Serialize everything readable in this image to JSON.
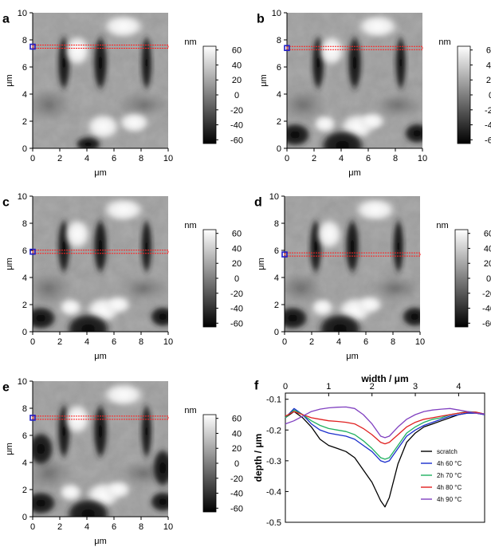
{
  "panels": [
    {
      "letter": "a",
      "scan_line_y_um": 7.5
    },
    {
      "letter": "b",
      "scan_line_y_um": 7.4
    },
    {
      "letter": "c",
      "scan_line_y_um": 5.9
    },
    {
      "letter": "d",
      "scan_line_y_um": 5.7
    },
    {
      "letter": "e",
      "scan_line_y_um": 7.3
    }
  ],
  "afm_axes": {
    "xlabel": "μm",
    "ylabel": "μm",
    "x_ticks": [
      "0",
      "2",
      "4",
      "6",
      "8",
      "10"
    ],
    "y_ticks": [
      "0",
      "2",
      "4",
      "6",
      "8",
      "10"
    ],
    "xlim": [
      0,
      10
    ],
    "ylim": [
      0,
      10
    ]
  },
  "colorbar": {
    "unit": "nm",
    "ticks": [
      "60",
      "40",
      "20",
      "0",
      "-20",
      "-40",
      "-60"
    ],
    "range": [
      -65,
      65
    ],
    "colors": {
      "high": "#ffffff",
      "low": "#000000"
    }
  },
  "scan_line_color": "#ff2020",
  "marker_color": "#2020c8",
  "chart_data": {
    "type": "line",
    "letter": "f",
    "xlabel": "width / μm",
    "ylabel": "depth / μm",
    "x_ticks": [
      "0",
      "1",
      "2",
      "3",
      "4"
    ],
    "y_ticks": [
      "-0.1",
      "-0.2",
      "-0.3",
      "-0.4",
      "-0.5"
    ],
    "xlim": [
      0,
      4.6
    ],
    "ylim": [
      -0.5,
      -0.08
    ],
    "legend_position": "bottom-right",
    "series": [
      {
        "name": "scratch",
        "color": "#000000",
        "x": [
          0,
          0.2,
          0.4,
          0.6,
          0.8,
          1.0,
          1.2,
          1.4,
          1.6,
          1.8,
          2.0,
          2.2,
          2.3,
          2.4,
          2.6,
          2.8,
          3.0,
          3.2,
          3.4,
          3.6,
          3.8,
          4.0,
          4.2,
          4.4,
          4.6
        ],
        "y": [
          -0.16,
          -0.14,
          -0.16,
          -0.19,
          -0.23,
          -0.25,
          -0.26,
          -0.27,
          -0.29,
          -0.33,
          -0.37,
          -0.43,
          -0.45,
          -0.42,
          -0.31,
          -0.24,
          -0.21,
          -0.19,
          -0.18,
          -0.17,
          -0.16,
          -0.15,
          -0.145,
          -0.145,
          -0.15
        ]
      },
      {
        "name": "4h 60 °C",
        "color": "#1a2ecc",
        "x": [
          0,
          0.2,
          0.4,
          0.6,
          0.8,
          1.0,
          1.2,
          1.4,
          1.6,
          1.8,
          2.0,
          2.2,
          2.3,
          2.4,
          2.6,
          2.8,
          3.0,
          3.2,
          3.4,
          3.6,
          3.8,
          4.0,
          4.2,
          4.4,
          4.6
        ],
        "y": [
          -0.16,
          -0.13,
          -0.15,
          -0.18,
          -0.2,
          -0.21,
          -0.215,
          -0.22,
          -0.23,
          -0.25,
          -0.27,
          -0.3,
          -0.305,
          -0.3,
          -0.26,
          -0.22,
          -0.2,
          -0.185,
          -0.175,
          -0.165,
          -0.155,
          -0.15,
          -0.145,
          -0.145,
          -0.15
        ]
      },
      {
        "name": "2h 70 °C",
        "color": "#20b060",
        "x": [
          0,
          0.2,
          0.4,
          0.6,
          0.8,
          1.0,
          1.2,
          1.4,
          1.6,
          1.8,
          2.0,
          2.2,
          2.3,
          2.4,
          2.6,
          2.8,
          3.0,
          3.2,
          3.4,
          3.6,
          3.8,
          4.0,
          4.2,
          4.4,
          4.6
        ],
        "y": [
          -0.16,
          -0.135,
          -0.15,
          -0.17,
          -0.185,
          -0.195,
          -0.2,
          -0.205,
          -0.215,
          -0.235,
          -0.26,
          -0.29,
          -0.295,
          -0.29,
          -0.25,
          -0.21,
          -0.19,
          -0.175,
          -0.165,
          -0.16,
          -0.15,
          -0.145,
          -0.14,
          -0.142,
          -0.148
        ]
      },
      {
        "name": "4h 80 °C",
        "color": "#e02020",
        "x": [
          0,
          0.2,
          0.4,
          0.6,
          0.8,
          1.0,
          1.2,
          1.4,
          1.6,
          1.8,
          2.0,
          2.2,
          2.3,
          2.4,
          2.6,
          2.8,
          3.0,
          3.2,
          3.4,
          3.6,
          3.8,
          4.0,
          4.2,
          4.4,
          4.6
        ],
        "y": [
          -0.155,
          -0.14,
          -0.15,
          -0.16,
          -0.165,
          -0.17,
          -0.172,
          -0.175,
          -0.18,
          -0.195,
          -0.215,
          -0.24,
          -0.245,
          -0.24,
          -0.215,
          -0.19,
          -0.175,
          -0.165,
          -0.16,
          -0.155,
          -0.15,
          -0.145,
          -0.142,
          -0.142,
          -0.148
        ]
      },
      {
        "name": "4h 90 °C",
        "color": "#8040c0",
        "x": [
          0,
          0.2,
          0.4,
          0.6,
          0.8,
          1.0,
          1.2,
          1.4,
          1.6,
          1.8,
          2.0,
          2.2,
          2.3,
          2.4,
          2.6,
          2.8,
          3.0,
          3.2,
          3.4,
          3.6,
          3.8,
          4.0,
          4.2,
          4.4,
          4.6
        ],
        "y": [
          -0.18,
          -0.17,
          -0.155,
          -0.14,
          -0.132,
          -0.128,
          -0.126,
          -0.125,
          -0.13,
          -0.15,
          -0.18,
          -0.22,
          -0.225,
          -0.22,
          -0.19,
          -0.165,
          -0.15,
          -0.14,
          -0.135,
          -0.132,
          -0.13,
          -0.135,
          -0.14,
          -0.145,
          -0.148
        ]
      }
    ]
  }
}
